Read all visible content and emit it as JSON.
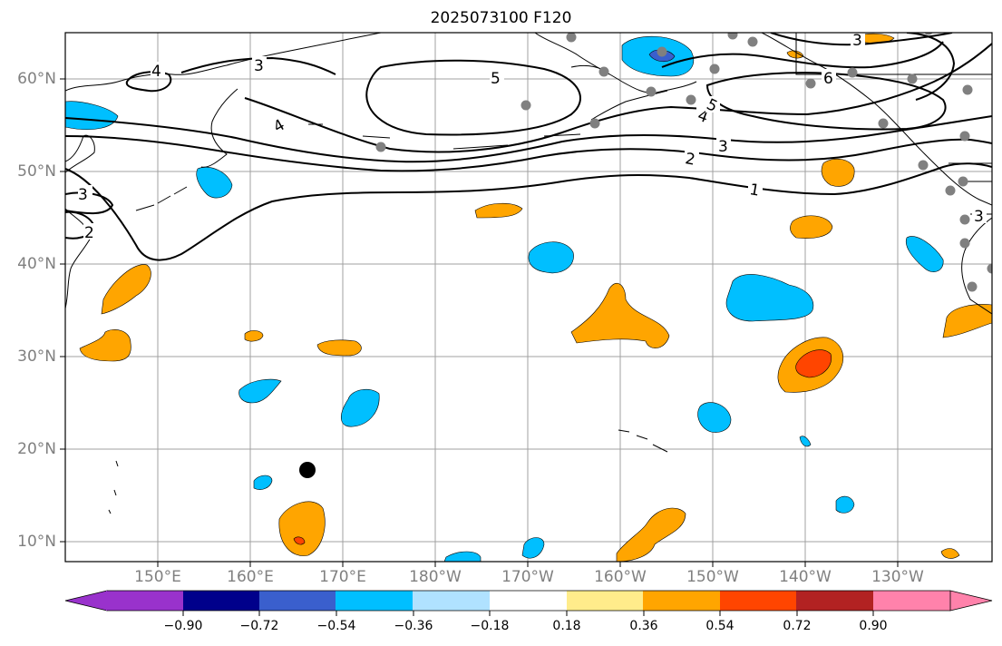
{
  "title": "2025073100 F120",
  "map": {
    "lat_labels": [
      "60°N",
      "50°N",
      "40°N",
      "30°N",
      "20°N",
      "10°N"
    ],
    "lon_labels": [
      "150°E",
      "160°E",
      "170°E",
      "180°W",
      "170°W",
      "160°W",
      "150°W",
      "140°W",
      "130°W"
    ],
    "contour_labels": [
      "1",
      "2",
      "3",
      "4",
      "5",
      "6",
      "4",
      "3",
      "2",
      "3",
      "4",
      "5",
      "3",
      "3"
    ],
    "colors": {
      "negative_strong": "#00bfff",
      "negative_stronger": "#3a5fcd",
      "positive": "#ffa500",
      "positive_strong": "#ff4500",
      "contour": "#000000",
      "grid": "#a0a0a0",
      "station": "#808080"
    }
  },
  "colorbar": {
    "colors": [
      "#9932cc",
      "#00008b",
      "#3a5fcd",
      "#00bfff",
      "#b0e2ff",
      "#ffffff",
      "#ffec8b",
      "#ffa500",
      "#ff4500",
      "#b22222",
      "#ff82ab"
    ],
    "tick_labels": [
      "−0.90",
      "−0.72",
      "−0.54",
      "−0.36",
      "−0.18",
      "0.18",
      "0.36",
      "0.54",
      "0.72",
      "0.90"
    ]
  }
}
